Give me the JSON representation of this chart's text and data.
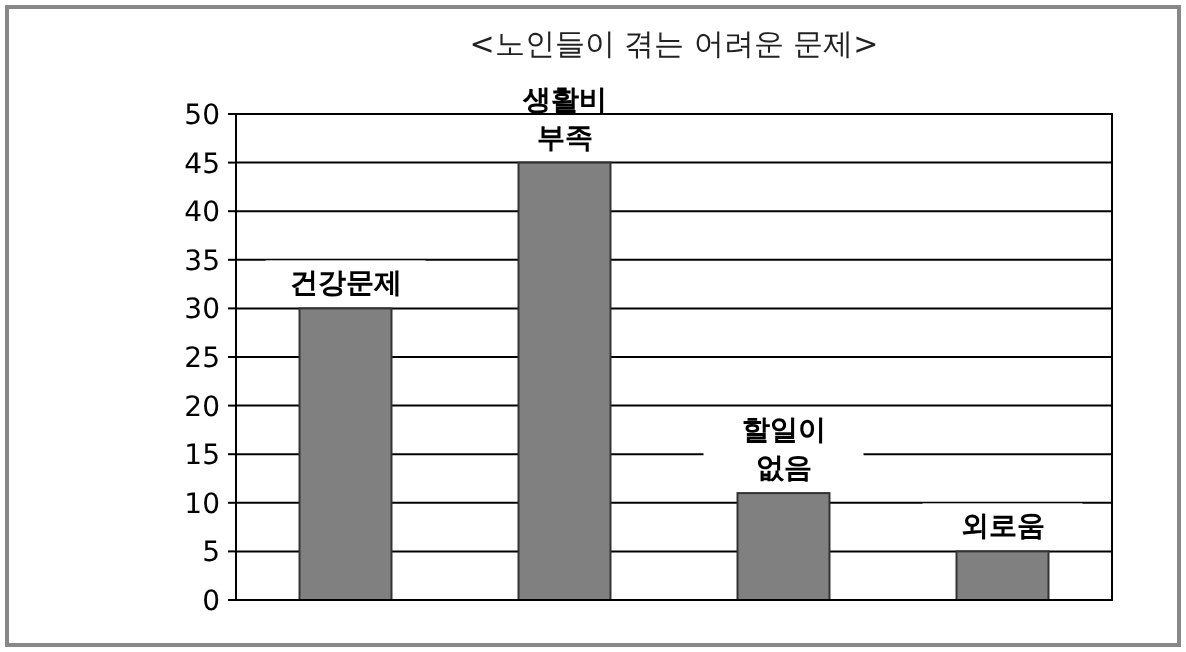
{
  "chart_data": {
    "type": "bar",
    "title": "<노인들이 겪는 어려운 문제>",
    "categories": [
      "건강문제",
      "생활비 부족",
      "할일이 없음",
      "외로움"
    ],
    "values": [
      30,
      45,
      11,
      5
    ],
    "color": "#808080",
    "ylim": [
      0,
      50
    ],
    "yticks": [
      0,
      5,
      10,
      15,
      20,
      25,
      30,
      35,
      40,
      45,
      50
    ],
    "grid": "y"
  }
}
